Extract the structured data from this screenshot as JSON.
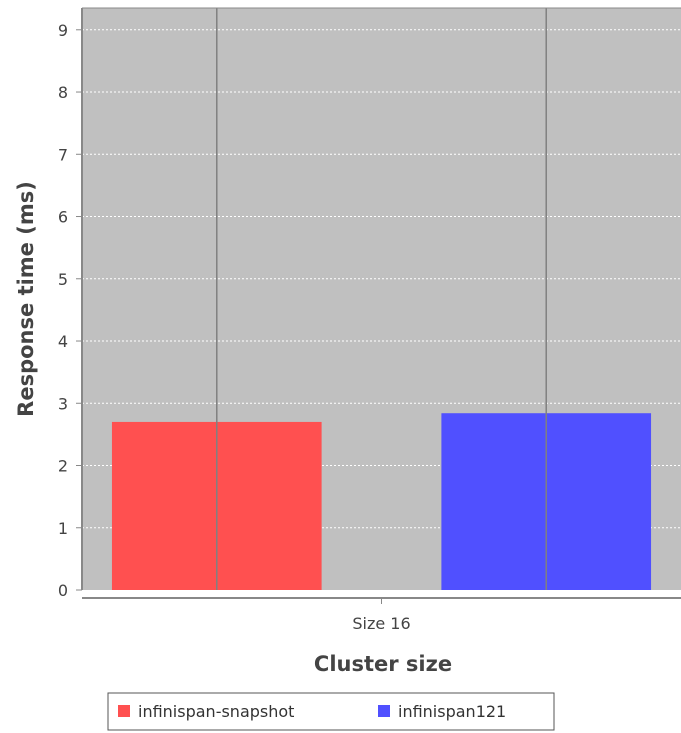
{
  "chart_data": {
    "type": "bar",
    "title": "",
    "xlabel": "Cluster size",
    "ylabel": "Response time (ms)",
    "categories": [
      "Size 16"
    ],
    "series": [
      {
        "name": "infinispan-snapshot",
        "color": "#ff5050",
        "values": [
          2.7
        ]
      },
      {
        "name": "infinispan121",
        "color": "#5050ff",
        "values": [
          2.84
        ]
      }
    ],
    "ylim": [
      0,
      9.35
    ],
    "yticks": [
      0,
      1,
      2,
      3,
      4,
      5,
      6,
      7,
      8,
      9
    ],
    "grid": true,
    "plot_background": "#c0c0c0",
    "legend_position": "bottom"
  }
}
